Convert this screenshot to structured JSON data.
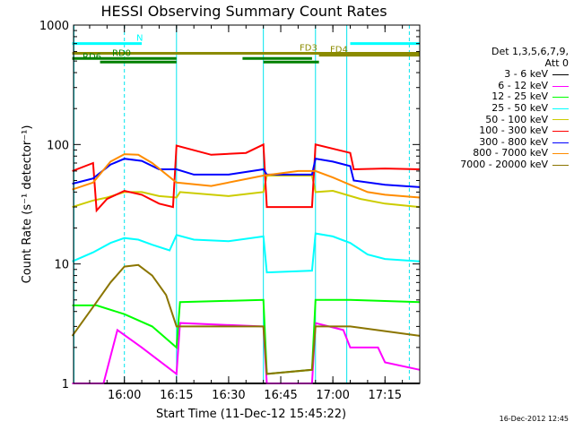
{
  "chart_data": {
    "type": "line",
    "title": "HESSI Observing Summary Count Rates",
    "xlabel": "Start Time (11-Dec-12 15:45:22)",
    "ylabel": "Count Rate (s⁻¹ detector⁻¹)",
    "yscale": "log",
    "ylim": [
      1,
      1000
    ],
    "xlim": [
      "15:45:22",
      "17:25:00"
    ],
    "x_ticks": [
      "16:00",
      "16:15",
      "16:30",
      "16:45",
      "17:00",
      "17:15"
    ],
    "y_ticks": [
      "1",
      "10",
      "100",
      "1000"
    ],
    "grid": false,
    "legend_placement": "right-outside",
    "legend_header": [
      "Det 1,3,5,6,7,9,",
      "Att 0"
    ],
    "series": [
      {
        "name": "3 - 6 keV",
        "color": "#000000",
        "x": [
          "15:45",
          "17:25"
        ],
        "y": [
          1.0,
          1.0
        ]
      },
      {
        "name": "6 - 12 keV",
        "color": "#ff00ff",
        "x": [
          "15:45",
          "15:54",
          "15:58",
          "16:05",
          "16:15",
          "16:16",
          "16:40",
          "16:41",
          "16:54",
          "16:55",
          "17:03",
          "17:05",
          "17:13",
          "17:15",
          "17:25"
        ],
        "y": [
          1.0,
          1.0,
          2.8,
          2.0,
          1.2,
          3.2,
          3.0,
          1.0,
          1.0,
          3.2,
          2.8,
          2.0,
          2.0,
          1.5,
          1.3
        ]
      },
      {
        "name": "12 - 25 keV",
        "color": "#00ff00",
        "x": [
          "15:45",
          "15:52",
          "16:00",
          "16:08",
          "16:15",
          "16:16",
          "16:40",
          "16:41",
          "16:54",
          "16:55",
          "17:05",
          "17:25"
        ],
        "y": [
          4.5,
          4.5,
          3.8,
          3.0,
          2.0,
          4.8,
          5.0,
          1.2,
          1.3,
          5.0,
          5.0,
          4.8
        ]
      },
      {
        "name": "25 - 50 keV",
        "color": "#00ffff",
        "x": [
          "15:45",
          "15:51",
          "15:56",
          "16:00",
          "16:04",
          "16:08",
          "16:13",
          "16:15",
          "16:20",
          "16:30",
          "16:40",
          "16:41",
          "16:54",
          "16:55",
          "17:00",
          "17:05",
          "17:10",
          "17:15",
          "17:25"
        ],
        "y": [
          10.5,
          12.5,
          15.0,
          16.5,
          16.0,
          14.5,
          13.0,
          17.5,
          16.0,
          15.5,
          17.0,
          8.5,
          8.8,
          18.0,
          17.0,
          15.0,
          12.0,
          11.0,
          10.5
        ]
      },
      {
        "name": "50 - 100 keV",
        "color": "#cccc00",
        "x": [
          "15:45",
          "15:51",
          "15:55",
          "16:00",
          "16:05",
          "16:10",
          "16:15",
          "16:16",
          "16:30",
          "16:40",
          "16:41",
          "16:54",
          "16:55",
          "17:00",
          "17:08",
          "17:15",
          "17:25"
        ],
        "y": [
          30.0,
          34.0,
          36.0,
          40.0,
          40.0,
          37.0,
          36.0,
          40.0,
          37.0,
          40.0,
          55.0,
          55.0,
          40.0,
          41.0,
          35.0,
          32.0,
          30.0
        ]
      },
      {
        "name": "100 - 300 keV",
        "color": "#ff0000",
        "x": [
          "15:45",
          "15:51",
          "15:52",
          "15:55",
          "16:00",
          "16:05",
          "16:10",
          "16:14",
          "16:15",
          "16:25",
          "16:35",
          "16:40",
          "16:41",
          "16:54",
          "16:55",
          "17:05",
          "17:06",
          "17:15",
          "17:25"
        ],
        "y": [
          60.0,
          70.0,
          28.0,
          35.0,
          41.0,
          38.0,
          32.0,
          30.0,
          98.0,
          82.0,
          85.0,
          100.0,
          30.0,
          30.0,
          100.0,
          85.0,
          62.0,
          63.0,
          62.0
        ]
      },
      {
        "name": "300 - 800 keV",
        "color": "#0000ff",
        "x": [
          "15:45",
          "15:51",
          "15:56",
          "16:00",
          "16:05",
          "16:10",
          "16:15",
          "16:20",
          "16:30",
          "16:40",
          "16:41",
          "16:54",
          "16:55",
          "17:00",
          "17:05",
          "17:06",
          "17:15",
          "17:25"
        ],
        "y": [
          47.0,
          52.0,
          68.0,
          76.0,
          73.0,
          62.0,
          62.0,
          56.0,
          56.0,
          62.0,
          56.0,
          56.0,
          76.0,
          72.0,
          66.0,
          50.0,
          46.0,
          44.0
        ]
      },
      {
        "name": "800 - 7000 keV",
        "color": "#ff8c00",
        "x": [
          "15:45",
          "15:51",
          "15:56",
          "16:00",
          "16:04",
          "16:08",
          "16:15",
          "16:25",
          "16:40",
          "16:50",
          "16:55",
          "17:00",
          "17:05",
          "17:10",
          "17:15",
          "17:25"
        ],
        "y": [
          42.0,
          48.0,
          72.0,
          83.0,
          82.0,
          70.0,
          48.0,
          45.0,
          55.0,
          60.0,
          60.0,
          53.0,
          46.0,
          40.0,
          38.0,
          36.0
        ]
      },
      {
        "name": "7000 - 20000 keV",
        "color": "#8b7500",
        "x": [
          "15:45",
          "15:52",
          "15:56",
          "16:00",
          "16:04",
          "16:08",
          "16:12",
          "16:15",
          "16:25",
          "16:40",
          "16:41",
          "16:54",
          "16:55",
          "17:05",
          "17:25"
        ],
        "y": [
          2.5,
          4.8,
          7.0,
          9.5,
          9.8,
          8.0,
          5.5,
          3.0,
          3.0,
          3.0,
          1.2,
          1.3,
          3.0,
          3.0,
          2.5
        ]
      }
    ],
    "annotations": [
      {
        "label": "N",
        "color": "#00ffff",
        "segments": [
          [
            "15:45",
            "16:05"
          ],
          [
            "17:05",
            "17:25"
          ]
        ],
        "level": 700
      },
      {
        "label": "FD3",
        "color": "#8b8b00",
        "segments": [
          [
            "15:45",
            "17:25"
          ]
        ],
        "level": 580
      },
      {
        "label": "FD4",
        "color": "#8b8b00",
        "segments": [
          [
            "16:56",
            "17:25"
          ]
        ],
        "level": 560
      },
      {
        "label": "RD0",
        "color": "#008000",
        "segments": [
          [
            "15:45",
            "16:15"
          ],
          [
            "16:34",
            "16:54"
          ]
        ],
        "level": 525
      },
      {
        "label": "RD6",
        "color": "#008000",
        "segments": [
          [
            "15:53",
            "16:15"
          ],
          [
            "16:40",
            "16:56"
          ]
        ],
        "level": 490
      }
    ],
    "vlines": [
      "15:45:30",
      "16:00",
      "16:15",
      "16:40",
      "16:55",
      "17:04",
      "17:22"
    ]
  },
  "timestamp": "16-Dec-2012 12:45"
}
